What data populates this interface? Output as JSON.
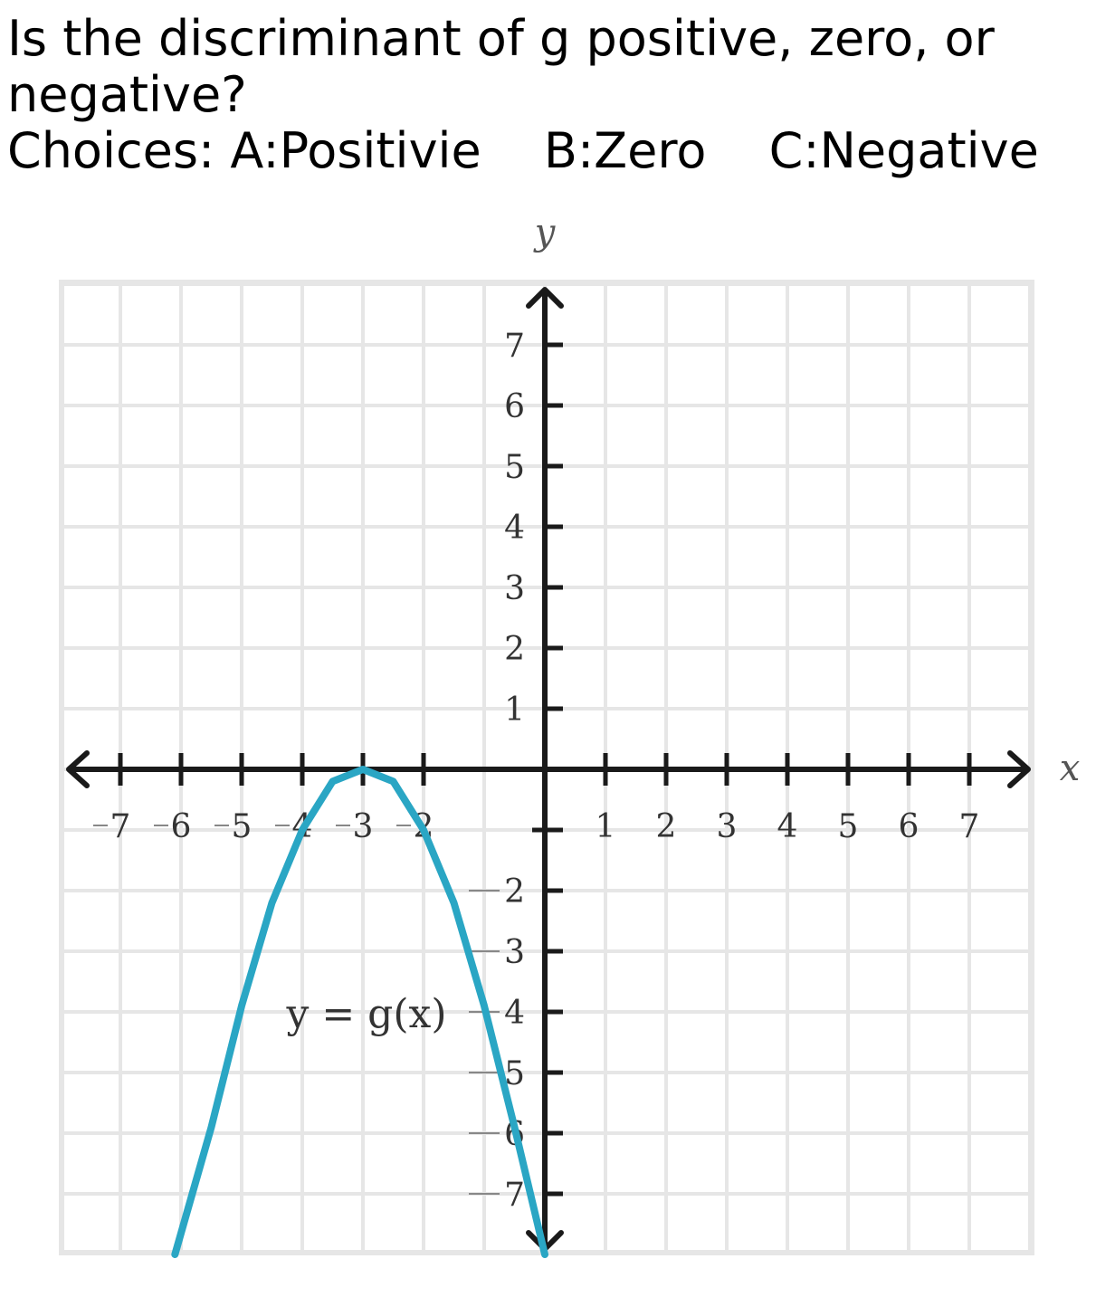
{
  "question": {
    "line1": "Is the discriminant of g positive, zero, or",
    "line2": "negative?",
    "choices_prefix": "Choices:",
    "choices": [
      "A:Positivie",
      "B:Zero",
      "C:Negative"
    ]
  },
  "chart_data": {
    "type": "line",
    "xlabel": "x",
    "ylabel": "y",
    "xlim": [
      -8,
      8
    ],
    "ylim": [
      -8,
      8
    ],
    "grid": true,
    "x_ticks": [
      -7,
      -6,
      -5,
      -4,
      -3,
      -2,
      1,
      2,
      3,
      4,
      5,
      6,
      7
    ],
    "y_ticks": [
      7,
      6,
      5,
      4,
      3,
      2,
      1,
      -2,
      -3,
      -4,
      -5,
      -6,
      -7
    ],
    "x_tick_labels": [
      "7",
      "6",
      "5",
      "4",
      "3",
      "2",
      "1",
      "2",
      "3",
      "4",
      "5",
      "6",
      "7"
    ],
    "y_tick_labels": [
      "7",
      "6",
      "5",
      "4",
      "3",
      "2",
      "1",
      "2",
      "3",
      "4",
      "5",
      "6",
      "7"
    ],
    "annotation": "y = g(x)",
    "series": [
      {
        "color": "#2aa6c4",
        "x": [
          -6.1,
          -5.5,
          -5,
          -4.5,
          -4,
          -3.5,
          -3,
          -2.5,
          -2,
          -1.5,
          -1,
          -0.5,
          0
        ],
        "y": [
          -8,
          -5.9,
          -3.9,
          -2.2,
          -1,
          -0.2,
          0,
          -0.2,
          -1,
          -2.2,
          -3.9,
          -5.9,
          -8
        ]
      }
    ]
  },
  "colors": {
    "grid": "#e6e6e6",
    "axis": "#1a1a1a",
    "curve": "#2aa6c4"
  }
}
